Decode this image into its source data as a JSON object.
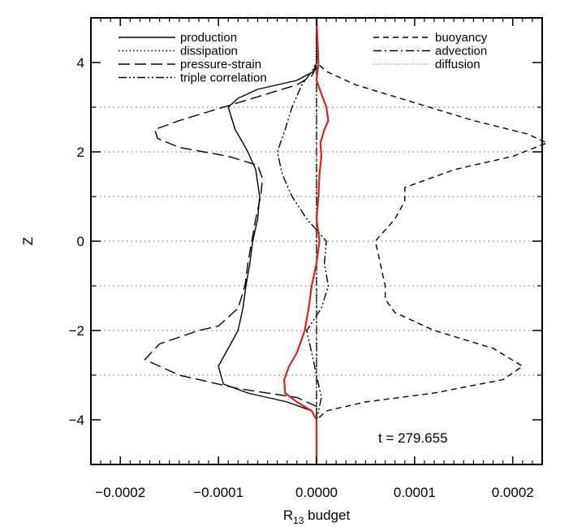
{
  "chart_data": {
    "type": "line",
    "title": "",
    "xlabel": "R",
    "xlabel_subscript": "13",
    "xlabel_suffix": " budget",
    "ylabel": "Z",
    "xlim": [
      -0.00023,
      0.00023
    ],
    "ylim": [
      -5,
      5
    ],
    "xticks": [
      -0.0002,
      -0.0001,
      0.0,
      0.0001,
      0.0002
    ],
    "xtick_labels": [
      "−0.0002",
      "−0.0001",
      "0.0000",
      "0.0001",
      "0.0002"
    ],
    "yticks": [
      -4,
      -2,
      0,
      2,
      4
    ],
    "ytick_labels": [
      "−4",
      "−2",
      "0",
      "2",
      "4"
    ],
    "grid": "horizontal dotted lines at z = -4, -3, -2, -1, 0, 1, 2, 3",
    "hgrid_values": [
      -3,
      -2,
      -1,
      0,
      1,
      2,
      3
    ],
    "legend_placement": "top",
    "annotation": "t = 279.655",
    "series": [
      {
        "name": "production",
        "style": "solid",
        "color": "#000000",
        "points": [
          [
            0,
            5
          ],
          [
            0,
            4
          ],
          [
            -3e-06,
            3.8
          ],
          [
            -2e-05,
            3.6
          ],
          [
            -6e-05,
            3.4
          ],
          [
            -8e-05,
            3.2
          ],
          [
            -9e-05,
            3.0
          ],
          [
            -8.3e-05,
            2.5
          ],
          [
            -7.5e-05,
            2.2
          ],
          [
            -7e-05,
            2.0
          ],
          [
            -6.2e-05,
            1.6
          ],
          [
            -5.8e-05,
            1.0
          ],
          [
            -6e-05,
            0.5
          ],
          [
            -6.5e-05,
            0.0
          ],
          [
            -6.8e-05,
            -0.5
          ],
          [
            -7.2e-05,
            -1.0
          ],
          [
            -7.5e-05,
            -1.5
          ],
          [
            -8e-05,
            -2.0
          ],
          [
            -9e-05,
            -2.4
          ],
          [
            -0.0001,
            -2.8
          ],
          [
            -9.5e-05,
            -3.2
          ],
          [
            -7e-05,
            -3.4
          ],
          [
            -3e-05,
            -3.6
          ],
          [
            -5e-06,
            -3.8
          ],
          [
            0,
            -4.0
          ],
          [
            0,
            -5
          ]
        ]
      },
      {
        "name": "dissipation",
        "style": "dotted",
        "color": "#000000",
        "points": [
          [
            0,
            5
          ],
          [
            0,
            -5
          ]
        ]
      },
      {
        "name": "pressure-strain",
        "style": "long-dash",
        "color": "#000000",
        "points": [
          [
            0,
            5
          ],
          [
            0,
            3.9
          ],
          [
            -5e-06,
            3.7
          ],
          [
            -2e-05,
            3.5
          ],
          [
            -8e-05,
            3.1
          ],
          [
            -0.00014,
            2.7
          ],
          [
            -0.000165,
            2.5
          ],
          [
            -0.000162,
            2.3
          ],
          [
            -0.00014,
            2.1
          ],
          [
            -9e-05,
            1.9
          ],
          [
            -6e-05,
            1.7
          ],
          [
            -5.5e-05,
            1.4
          ],
          [
            -5.7e-05,
            1.0
          ],
          [
            -6.2e-05,
            0.5
          ],
          [
            -6.6e-05,
            0.0
          ],
          [
            -7e-05,
            -0.5
          ],
          [
            -7.3e-05,
            -1.0
          ],
          [
            -8e-05,
            -1.5
          ],
          [
            -0.0001,
            -1.9
          ],
          [
            -0.00012,
            -2.0
          ],
          [
            -0.00016,
            -2.3
          ],
          [
            -0.000175,
            -2.65
          ],
          [
            -0.00014,
            -3.0
          ],
          [
            -8e-05,
            -3.3
          ],
          [
            -2e-05,
            -3.5
          ],
          [
            0,
            -3.7
          ],
          [
            0,
            -5
          ]
        ]
      },
      {
        "name": "triple correlation",
        "style": "dash-dot-dot",
        "color": "#000000",
        "points": [
          [
            0,
            5
          ],
          [
            0,
            4.0
          ],
          [
            -5e-06,
            3.8
          ],
          [
            -1.5e-05,
            3.5
          ],
          [
            -2.5e-05,
            3.0
          ],
          [
            -3.2e-05,
            2.5
          ],
          [
            -4e-05,
            2.0
          ],
          [
            -3.5e-05,
            1.5
          ],
          [
            -2.5e-05,
            1.0
          ],
          [
            -1e-05,
            0.5
          ],
          [
            1e-05,
            0.0
          ],
          [
            8e-06,
            -0.5
          ],
          [
            1.2e-05,
            -1.0
          ],
          [
            5e-06,
            -1.5
          ],
          [
            -1e-05,
            -2.0
          ],
          [
            -5e-06,
            -2.5
          ],
          [
            0,
            -3.0
          ],
          [
            5e-06,
            -3.5
          ],
          [
            0,
            -4.0
          ],
          [
            0,
            -5
          ]
        ]
      },
      {
        "name": "buoyancy",
        "style": "short-dash",
        "color": "#000000",
        "points": [
          [
            0,
            5
          ],
          [
            0,
            4.0
          ],
          [
            1e-05,
            3.8
          ],
          [
            4e-05,
            3.5
          ],
          [
            0.0001,
            3.1
          ],
          [
            0.00016,
            2.7
          ],
          [
            0.000215,
            2.4
          ],
          [
            0.000235,
            2.2
          ],
          [
            0.0002,
            1.9
          ],
          [
            0.00014,
            1.6
          ],
          [
            9e-05,
            1.2
          ],
          [
            9e-05,
            0.9
          ],
          [
            8e-05,
            0.5
          ],
          [
            6e-05,
            0.0
          ],
          [
            6.5e-05,
            -0.5
          ],
          [
            7e-05,
            -1.0
          ],
          [
            7e-05,
            -1.3
          ],
          [
            8e-05,
            -1.6
          ],
          [
            0.00012,
            -2.0
          ],
          [
            0.00018,
            -2.4
          ],
          [
            0.00021,
            -2.8
          ],
          [
            0.00019,
            -3.1
          ],
          [
            0.00012,
            -3.4
          ],
          [
            5e-05,
            -3.6
          ],
          [
            1e-05,
            -3.8
          ],
          [
            0,
            -4.0
          ],
          [
            0,
            -5
          ]
        ]
      },
      {
        "name": "advection",
        "style": "dash-dot",
        "color": "#000000",
        "points": [
          [
            0,
            5
          ],
          [
            0,
            -5
          ]
        ]
      },
      {
        "name": "diffusion",
        "style": "fine-dotted",
        "color": "#888888",
        "points": [
          [
            0,
            5
          ],
          [
            0,
            -5
          ]
        ]
      },
      {
        "name": "",
        "style": "solid",
        "color": "#e02020",
        "points": [
          [
            0,
            5
          ],
          [
            2e-06,
            4.0
          ],
          [
            0,
            3.6
          ],
          [
            5e-06,
            3.3
          ],
          [
            1e-05,
            3.0
          ],
          [
            1.2e-05,
            2.7
          ],
          [
            8e-06,
            2.5
          ],
          [
            4e-06,
            2.2
          ],
          [
            5e-06,
            1.9
          ],
          [
            3e-06,
            1.5
          ],
          [
            2e-06,
            1.0
          ],
          [
            0,
            0.5
          ],
          [
            3e-06,
            0.0
          ],
          [
            0,
            -0.5
          ],
          [
            -5e-06,
            -1.0
          ],
          [
            -8e-06,
            -1.5
          ],
          [
            -1.2e-05,
            -2.0
          ],
          [
            -2e-05,
            -2.5
          ],
          [
            -2.8e-05,
            -2.8
          ],
          [
            -3.3e-05,
            -3.1
          ],
          [
            -3.2e-05,
            -3.4
          ],
          [
            -2e-05,
            -3.6
          ],
          [
            -5e-06,
            -3.8
          ],
          [
            0,
            -4.0
          ],
          [
            0,
            -5
          ]
        ]
      }
    ]
  }
}
